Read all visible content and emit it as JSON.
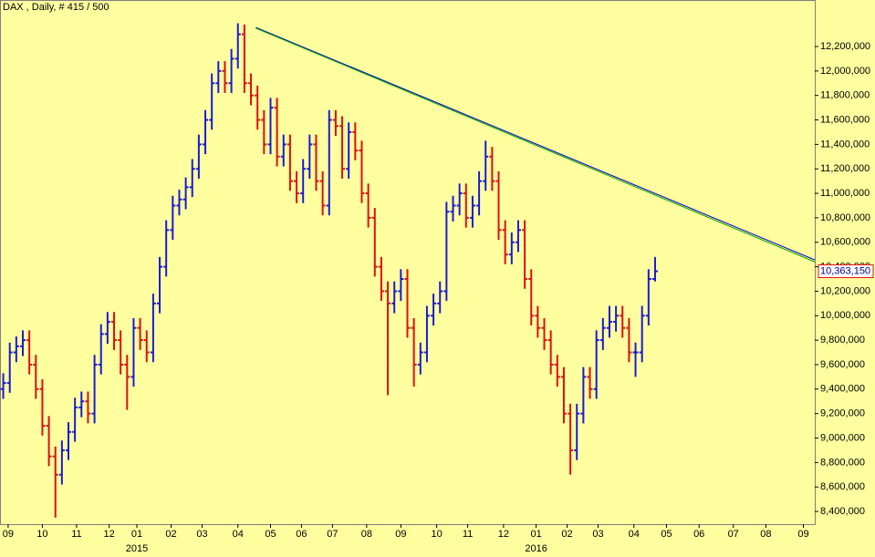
{
  "chart_data": {
    "type": "ohlc",
    "title": "DAX , Daily, # 415 / 500",
    "up_color": "#1a1ad8",
    "down_color": "#e01010",
    "background": "#ffffa0",
    "xlim": [
      0,
      500
    ],
    "ylim": [
      8296000,
      12580000
    ],
    "yticks": [
      {
        "value": 8400000,
        "label": "8,400,000"
      },
      {
        "value": 8600000,
        "label": "8,600,000"
      },
      {
        "value": 8800000,
        "label": "8,800,000"
      },
      {
        "value": 9000000,
        "label": "9,000,000"
      },
      {
        "value": 9200000,
        "label": "9,200,000"
      },
      {
        "value": 9400000,
        "label": "9,400,000"
      },
      {
        "value": 9600000,
        "label": "9,600,000"
      },
      {
        "value": 9800000,
        "label": "9,800,000"
      },
      {
        "value": 10000000,
        "label": "10,000,000"
      },
      {
        "value": 10200000,
        "label": "10,200,000"
      },
      {
        "value": 10400000,
        "label": "10,400,000"
      },
      {
        "value": 10600000,
        "label": "10,600,000"
      },
      {
        "value": 10800000,
        "label": "10,800,000"
      },
      {
        "value": 11000000,
        "label": "11,000,000"
      },
      {
        "value": 11200000,
        "label": "11,200,000"
      },
      {
        "value": 11400000,
        "label": "11,400,000"
      },
      {
        "value": 11600000,
        "label": "11,600,000"
      },
      {
        "value": 11800000,
        "label": "11,800,000"
      },
      {
        "value": 12000000,
        "label": "12,000,000"
      },
      {
        "value": 12200000,
        "label": "12,200,000"
      }
    ],
    "xticks": [
      {
        "value": 5,
        "label": "09"
      },
      {
        "value": 26,
        "label": "10"
      },
      {
        "value": 47,
        "label": "11"
      },
      {
        "value": 67,
        "label": "12"
      },
      {
        "value": 84,
        "label": "01"
      },
      {
        "value": 105,
        "label": "02"
      },
      {
        "value": 124,
        "label": "03"
      },
      {
        "value": 146,
        "label": "04"
      },
      {
        "value": 166,
        "label": "05"
      },
      {
        "value": 185,
        "label": "06"
      },
      {
        "value": 204,
        "label": "07"
      },
      {
        "value": 225,
        "label": "08"
      },
      {
        "value": 246,
        "label": "09"
      },
      {
        "value": 268,
        "label": "10"
      },
      {
        "value": 287,
        "label": "11"
      },
      {
        "value": 309,
        "label": "12"
      },
      {
        "value": 329,
        "label": "01"
      },
      {
        "value": 348,
        "label": "02"
      },
      {
        "value": 367,
        "label": "03"
      },
      {
        "value": 389,
        "label": "04"
      },
      {
        "value": 409,
        "label": "05"
      },
      {
        "value": 429,
        "label": "06"
      },
      {
        "value": 450,
        "label": "07"
      },
      {
        "value": 470,
        "label": "08"
      },
      {
        "value": 493,
        "label": "09"
      }
    ],
    "year_labels": [
      {
        "value": 84,
        "label": "2015"
      },
      {
        "value": 329,
        "label": "2016"
      }
    ],
    "x": [
      2,
      6,
      10,
      14,
      18,
      22,
      26,
      30,
      34,
      38,
      42,
      46,
      50,
      54,
      58,
      62,
      66,
      70,
      74,
      78,
      82,
      86,
      90,
      94,
      98,
      102,
      106,
      110,
      114,
      118,
      122,
      126,
      130,
      134,
      138,
      142,
      146,
      150,
      154,
      158,
      162,
      166,
      170,
      174,
      178,
      182,
      186,
      190,
      194,
      198,
      202,
      206,
      210,
      214,
      218,
      222,
      226,
      230,
      234,
      238,
      242,
      246,
      250,
      254,
      258,
      262,
      266,
      270,
      274,
      278,
      282,
      286,
      290,
      294,
      298,
      302,
      306,
      310,
      314,
      318,
      322,
      326,
      330,
      334,
      338,
      342,
      346,
      350,
      354,
      358,
      362,
      366,
      370,
      374,
      378,
      382,
      386,
      390,
      394,
      398,
      402
    ],
    "open": [
      9400000,
      9450000,
      9700000,
      9750000,
      9800000,
      9600000,
      9400000,
      9100000,
      8850000,
      8700000,
      8900000,
      9050000,
      9250000,
      9300000,
      9200000,
      9600000,
      9850000,
      9950000,
      9800000,
      9600000,
      9500000,
      9900000,
      9800000,
      9700000,
      10100000,
      10400000,
      10700000,
      10900000,
      10950000,
      11050000,
      11200000,
      11400000,
      11600000,
      11900000,
      12000000,
      11900000,
      12100000,
      12300000,
      11900000,
      11800000,
      11600000,
      11400000,
      11700000,
      11300000,
      11400000,
      11100000,
      11000000,
      11200000,
      11400000,
      11100000,
      10900000,
      11600000,
      11550000,
      11200000,
      11500000,
      11350000,
      11000000,
      10800000,
      10400000,
      10200000,
      10100000,
      10200000,
      10300000,
      9900000,
      9600000,
      9700000,
      10000000,
      10100000,
      10200000,
      10850000,
      10900000,
      11000000,
      10800000,
      10900000,
      11100000,
      11300000,
      11100000,
      10700000,
      10500000,
      10600000,
      10700000,
      10300000,
      10000000,
      9900000,
      9800000,
      9600000,
      9500000,
      9200000,
      8900000,
      9200000,
      9500000,
      9400000,
      9800000,
      9900000,
      9950000,
      10000000,
      9900000,
      9700000,
      9700000,
      10000000,
      10300000
    ],
    "high": [
      9530000,
      9780000,
      9830000,
      9880000,
      9880000,
      9680000,
      9480000,
      9180000,
      8930000,
      8980000,
      9130000,
      9330000,
      9380000,
      9380000,
      9680000,
      9930000,
      10030000,
      10030000,
      9880000,
      9680000,
      9980000,
      9980000,
      9880000,
      10180000,
      10480000,
      10780000,
      10980000,
      11030000,
      11130000,
      11280000,
      11480000,
      11680000,
      11980000,
      12080000,
      12080000,
      12180000,
      12390000,
      12380000,
      11980000,
      11880000,
      11680000,
      11780000,
      11780000,
      11480000,
      11480000,
      11180000,
      11280000,
      11480000,
      11480000,
      11180000,
      11680000,
      11680000,
      11630000,
      11580000,
      11580000,
      11430000,
      11080000,
      10880000,
      10480000,
      10280000,
      10280000,
      10380000,
      10380000,
      9980000,
      9780000,
      10080000,
      10180000,
      10280000,
      10930000,
      10980000,
      11080000,
      11080000,
      10980000,
      11180000,
      11430000,
      11380000,
      11180000,
      10780000,
      10680000,
      10780000,
      10780000,
      10380000,
      10080000,
      9980000,
      9880000,
      9680000,
      9580000,
      9280000,
      9280000,
      9580000,
      9580000,
      9880000,
      9980000,
      10080000,
      10080000,
      10080000,
      9980000,
      9780000,
      10080000,
      10380000,
      10480000
    ],
    "low": [
      9320000,
      9370000,
      9620000,
      9670000,
      9520000,
      9320000,
      9020000,
      8770000,
      8350000,
      8620000,
      8820000,
      8970000,
      9170000,
      9120000,
      9120000,
      9520000,
      9770000,
      9720000,
      9520000,
      9230000,
      9420000,
      9720000,
      9620000,
      9620000,
      10020000,
      10320000,
      10620000,
      10820000,
      10870000,
      10970000,
      11120000,
      11320000,
      11520000,
      11820000,
      11820000,
      11820000,
      12020000,
      11820000,
      11720000,
      11520000,
      11320000,
      11320000,
      11220000,
      11220000,
      11020000,
      10920000,
      10920000,
      11120000,
      11020000,
      10820000,
      10820000,
      11470000,
      11120000,
      11120000,
      11270000,
      10920000,
      10720000,
      10320000,
      10120000,
      9350000,
      10020000,
      10120000,
      9820000,
      9420000,
      9520000,
      9620000,
      9920000,
      10020000,
      10120000,
      10770000,
      10820000,
      10720000,
      10720000,
      10820000,
      11020000,
      11020000,
      10620000,
      10420000,
      10420000,
      10520000,
      10220000,
      9920000,
      9820000,
      9720000,
      9520000,
      9420000,
      9120000,
      8700000,
      8820000,
      9120000,
      9320000,
      9320000,
      9720000,
      9820000,
      9870000,
      9820000,
      9620000,
      9500000,
      9620000,
      9920000,
      10280000
    ],
    "close": [
      9450000,
      9700000,
      9750000,
      9800000,
      9600000,
      9400000,
      9100000,
      8850000,
      8700000,
      8900000,
      9050000,
      9250000,
      9300000,
      9200000,
      9600000,
      9850000,
      9950000,
      9800000,
      9600000,
      9500000,
      9900000,
      9800000,
      9700000,
      10100000,
      10400000,
      10700000,
      10900000,
      10950000,
      11050000,
      11200000,
      11400000,
      11600000,
      11900000,
      12000000,
      11900000,
      12100000,
      12300000,
      11900000,
      11800000,
      11600000,
      11400000,
      11700000,
      11300000,
      11400000,
      11100000,
      11000000,
      11200000,
      11400000,
      11100000,
      10900000,
      11600000,
      11550000,
      11200000,
      11500000,
      11350000,
      11000000,
      10800000,
      10400000,
      10200000,
      10100000,
      10200000,
      10300000,
      9900000,
      9600000,
      9700000,
      10000000,
      10100000,
      10200000,
      10850000,
      10900000,
      11000000,
      10800000,
      10900000,
      11100000,
      11300000,
      11100000,
      10700000,
      10500000,
      10600000,
      10700000,
      10300000,
      10000000,
      9900000,
      9800000,
      9600000,
      9500000,
      9200000,
      8900000,
      9200000,
      9500000,
      9400000,
      9800000,
      9900000,
      9950000,
      10000000,
      9900000,
      9700000,
      9700000,
      10000000,
      10300000,
      10363150
    ],
    "last_price": {
      "value": 10363150,
      "label": "10,363,150"
    },
    "trendlines": [
      {
        "color": "#0000c8",
        "x": [
          157,
          500
        ],
        "y": [
          12356000,
          10456000
        ]
      },
      {
        "color": "#00a000",
        "x": [
          157,
          500
        ],
        "y": [
          12350000,
          10440000
        ]
      }
    ]
  }
}
